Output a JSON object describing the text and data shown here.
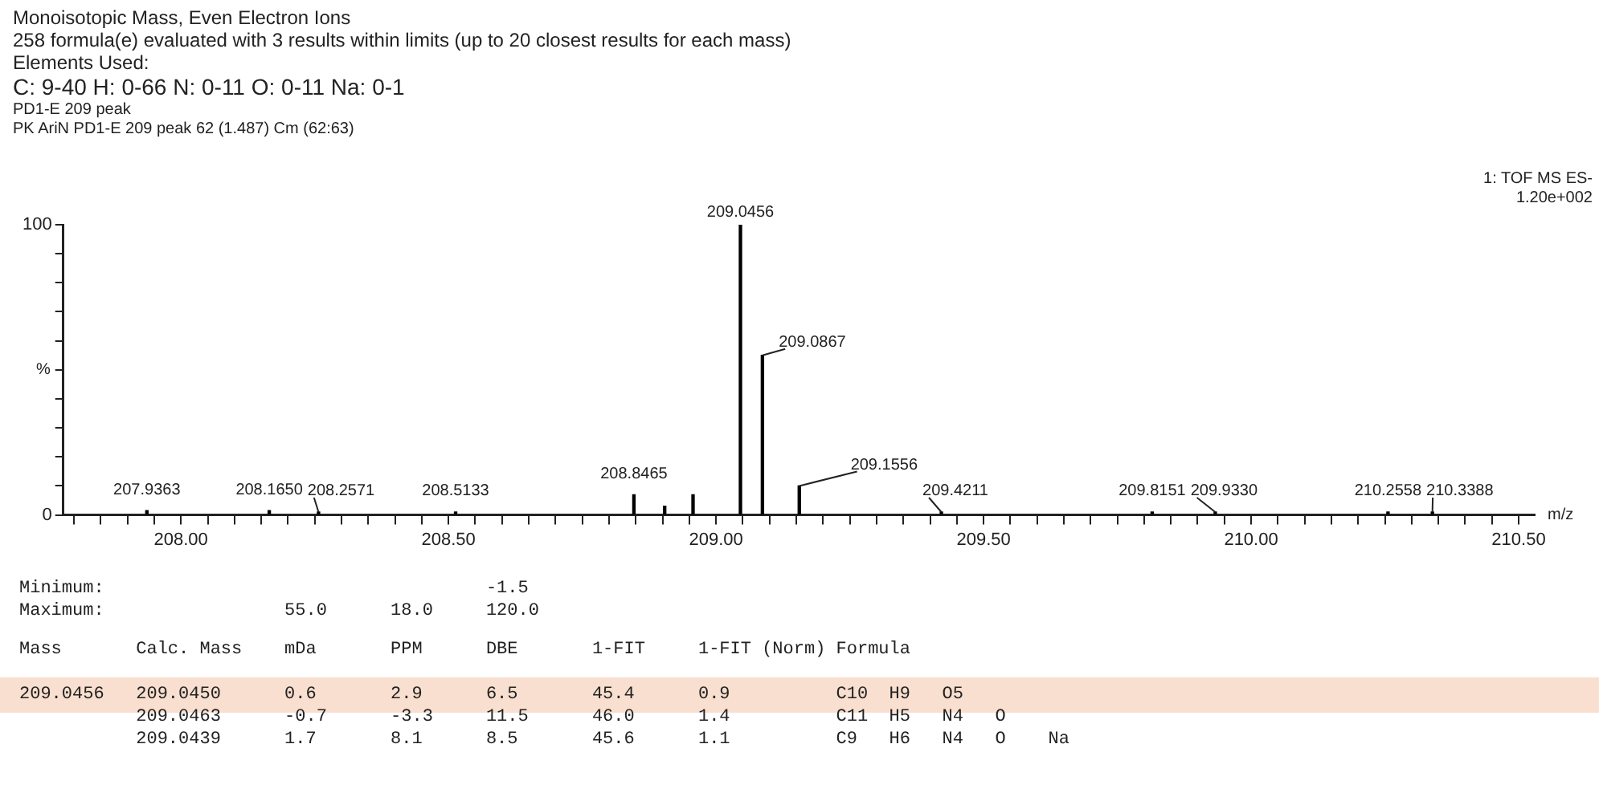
{
  "chart_data": {
    "type": "bar",
    "title": "Monoisotopic Mass, Even Electron Ions",
    "subtitle": "258 formula(e) evaluated with 3 results within limits (up to 20 closest results for each mass)",
    "xlabel": "m/z",
    "ylabel": "%",
    "x": [
      207.9363,
      208.165,
      208.2571,
      208.5133,
      208.8465,
      208.904,
      208.957,
      209.0456,
      209.0867,
      209.1556,
      209.4211,
      209.8151,
      209.933,
      210.2558,
      210.3388
    ],
    "values": [
      1.5,
      1.5,
      1,
      1,
      7,
      3,
      7,
      100,
      55,
      10,
      1,
      1,
      1,
      1,
      1
    ],
    "color": "#000000",
    "xlim": [
      207.78,
      210.53
    ],
    "xticks": [
      {
        "value": 207.8,
        "label": null
      },
      {
        "value": 207.85,
        "label": null
      },
      {
        "value": 207.9,
        "label": null
      },
      {
        "value": 207.95,
        "label": null
      },
      {
        "value": 208,
        "label": "208.00"
      },
      {
        "value": 208.05,
        "label": null
      },
      {
        "value": 208.1,
        "label": null
      },
      {
        "value": 208.15,
        "label": null
      },
      {
        "value": 208.2,
        "label": null
      },
      {
        "value": 208.25,
        "label": null
      },
      {
        "value": 208.3,
        "label": null
      },
      {
        "value": 208.35,
        "label": null
      },
      {
        "value": 208.4,
        "label": null
      },
      {
        "value": 208.45,
        "label": null
      },
      {
        "value": 208.5,
        "label": "208.50"
      },
      {
        "value": 208.55,
        "label": null
      },
      {
        "value": 208.6,
        "label": null
      },
      {
        "value": 208.65,
        "label": null
      },
      {
        "value": 208.7,
        "label": null
      },
      {
        "value": 208.75,
        "label": null
      },
      {
        "value": 208.8,
        "label": null
      },
      {
        "value": 208.85,
        "label": null
      },
      {
        "value": 208.9,
        "label": null
      },
      {
        "value": 208.95,
        "label": null
      },
      {
        "value": 209,
        "label": "209.00"
      },
      {
        "value": 209.05,
        "label": null
      },
      {
        "value": 209.1,
        "label": null
      },
      {
        "value": 209.15,
        "label": null
      },
      {
        "value": 209.2,
        "label": null
      },
      {
        "value": 209.25,
        "label": null
      },
      {
        "value": 209.3,
        "label": null
      },
      {
        "value": 209.35,
        "label": null
      },
      {
        "value": 209.4,
        "label": null
      },
      {
        "value": 209.45,
        "label": null
      },
      {
        "value": 209.5,
        "label": "209.50"
      },
      {
        "value": 209.55,
        "label": null
      },
      {
        "value": 209.6,
        "label": null
      },
      {
        "value": 209.65,
        "label": null
      },
      {
        "value": 209.7,
        "label": null
      },
      {
        "value": 209.75,
        "label": null
      },
      {
        "value": 209.8,
        "label": null
      },
      {
        "value": 209.85,
        "label": null
      },
      {
        "value": 209.9,
        "label": null
      },
      {
        "value": 209.95,
        "label": null
      },
      {
        "value": 210,
        "label": "210.00"
      },
      {
        "value": 210.05,
        "label": null
      },
      {
        "value": 210.1,
        "label": null
      },
      {
        "value": 210.15,
        "label": null
      },
      {
        "value": 210.2,
        "label": null
      },
      {
        "value": 210.25,
        "label": null
      },
      {
        "value": 210.3,
        "label": null
      },
      {
        "value": 210.35,
        "label": null
      },
      {
        "value": 210.4,
        "label": null
      },
      {
        "value": 210.45,
        "label": null
      },
      {
        "value": 210.5,
        "label": "210.50"
      }
    ],
    "ylim": [
      0,
      100
    ],
    "yticks": [
      0,
      {
        "value": 10,
        "label": null
      },
      {
        "value": 20,
        "label": null
      },
      {
        "value": 30,
        "label": null
      },
      {
        "value": 40,
        "label": null
      },
      {
        "value": 50,
        "label": null
      },
      {
        "value": 60,
        "label": null
      },
      {
        "value": 70,
        "label": null
      },
      {
        "value": 80,
        "label": null
      },
      {
        "value": 90,
        "label": null
      },
      100
    ],
    "grid": false,
    "legend": false,
    "annotations": [
      "Elements Used:",
      "C: 9-40   H: 0-66   N: 0-11   O: 0-11   Na: 0-1",
      "PD1-E 209 peak",
      "PK AriN PD1-E 209 peak 62 (1.487) Cm (62:63)",
      "1: TOF MS ES-",
      "1.20e+002",
      {
        "text": "207.9363",
        "x": 207.9363,
        "y": 1.5
      },
      {
        "text": "208.1650",
        "x": 208.165,
        "y": 1.5
      },
      {
        "text": "208.2571",
        "x": 208.2571,
        "y": 1
      },
      {
        "text": "208.5133",
        "x": 208.5133,
        "y": 1
      },
      {
        "text": "208.8465",
        "x": 208.8465,
        "y": 7
      },
      {
        "text": "209.0456",
        "x": 209.0456,
        "y": 100
      },
      {
        "text": "209.0867",
        "x": 209.0867,
        "y": 55
      },
      {
        "text": "209.1556",
        "x": 209.1556,
        "y": 10
      },
      {
        "text": "209.4211",
        "x": 209.4211,
        "y": 1
      },
      {
        "text": "209.8151",
        "x": 209.8151,
        "y": 1
      },
      {
        "text": "209.9330",
        "x": 209.933,
        "y": 1
      },
      {
        "text": "210.2558",
        "x": 210.2558,
        "y": 1
      },
      {
        "text": "210.3388",
        "x": 210.3388,
        "y": 1
      },
      "Minimum:                                    -1.5",
      "Maximum:                 55.0      18.0     120.0",
      "Mass       Calc. Mass    mDa       PPM      DBE       1-FIT     1-FIT (Norm) Formula",
      "209.0456   209.0450      0.6       2.9      6.5       45.4      0.9          C10  H9   O5",
      "           209.0463      -0.7      -3.3     11.5      46.0      1.4          C11  H5   N4   O",
      "           209.0439      1.7       8.1      8.5       45.6      1.1          C9   H6   N4   O    Na"
    ]
  }
}
